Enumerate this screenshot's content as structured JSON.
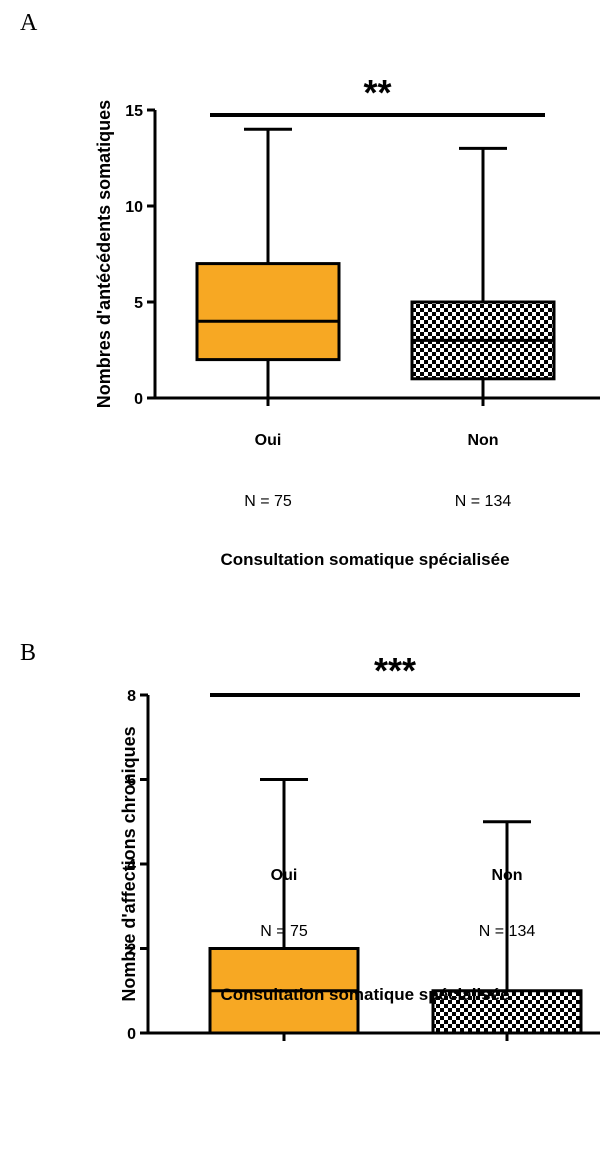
{
  "chart_data": [
    {
      "type": "box",
      "panel_label": "A",
      "ylabel": "Nombres d'antécédents somatiques",
      "xlabel": "Consultation somatique spécialisée",
      "ylim": [
        0,
        15
      ],
      "yticks": [
        0,
        5,
        10,
        15
      ],
      "significance": "**",
      "categories": [
        {
          "label": "Oui",
          "n_label": "N = 75",
          "min": 0,
          "q1": 2,
          "median": 4,
          "q3": 7,
          "max": 14,
          "fill": "#F7A823",
          "pattern": "solid"
        },
        {
          "label": "Non",
          "n_label": "N = 134",
          "min": 0,
          "q1": 1,
          "median": 3,
          "q3": 5,
          "max": 13,
          "fill": "#ffffff",
          "pattern": "checkerboard"
        }
      ]
    },
    {
      "type": "box",
      "panel_label": "B",
      "ylabel": "Nombre d'affections chroniques",
      "xlabel": "Consultation somatique spécialisée",
      "ylim": [
        0,
        8
      ],
      "yticks": [
        0,
        2,
        4,
        6,
        8
      ],
      "significance": "***",
      "categories": [
        {
          "label": "Oui",
          "n_label": "N = 75",
          "min": 0,
          "q1": 0,
          "median": 1,
          "q3": 2,
          "max": 6,
          "fill": "#F7A823",
          "pattern": "solid"
        },
        {
          "label": "Non",
          "n_label": "N = 134",
          "min": 0,
          "q1": 0,
          "median": 0,
          "q3": 1,
          "max": 5,
          "fill": "#ffffff",
          "pattern": "checkerboard"
        }
      ]
    }
  ]
}
